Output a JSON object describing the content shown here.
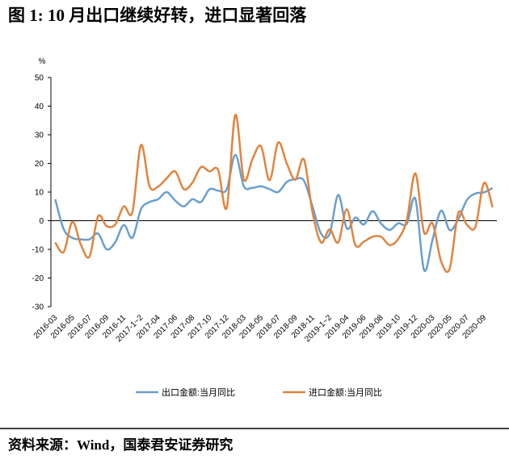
{
  "chart_data": {
    "type": "line",
    "title": "图 1: 10 月出口继续好转，进口显著回落",
    "y_unit": "%",
    "categories": [
      "2016-03",
      null,
      "2016-05",
      null,
      "2016-07",
      null,
      "2016-09",
      null,
      "2016-11",
      null,
      "2017-1~2",
      null,
      "2017-04",
      null,
      "2017-06",
      null,
      "2017-08",
      null,
      "2017-10",
      null,
      "2017-12",
      null,
      "2018-03",
      null,
      "2018-05",
      null,
      "2018-07",
      null,
      "2018-09",
      null,
      "2018-11",
      null,
      "2019-1~2",
      null,
      "2019-04",
      null,
      "2019-06",
      null,
      "2019-08",
      null,
      "2019-10",
      null,
      "2019-12",
      null,
      "2020-03",
      null,
      "2020-05",
      null,
      "2020-07",
      null,
      "2020-09",
      null
    ],
    "series": [
      {
        "name": "出口金额:当月同比",
        "color": "#6a9fce",
        "values": [
          7.5,
          -3,
          -6,
          -6.5,
          -6.5,
          -4.5,
          -10,
          -7.5,
          -1.5,
          -6,
          4,
          6.5,
          7.5,
          10,
          7,
          5,
          7.5,
          6.5,
          11,
          10.5,
          11,
          23,
          12,
          11.5,
          12,
          11,
          10,
          13.5,
          14.5,
          14,
          5,
          -4.5,
          -4.6,
          9,
          -2.7,
          1.1,
          -1.3,
          3.3,
          -1,
          -3.2,
          -0.9,
          -1.1,
          7.6,
          -17.2,
          -6.6,
          3.5,
          -3.3,
          0.5,
          7.2,
          9.5,
          9.9,
          11.4
        ]
      },
      {
        "name": "进口金额:当月同比",
        "color": "#e0843f",
        "values": [
          -7.6,
          -10.9,
          -0.4,
          -8.4,
          -12.5,
          1.5,
          -1.9,
          -1.4,
          5,
          3,
          26.4,
          12,
          11.9,
          14.8,
          17.2,
          11,
          13.3,
          18.7,
          17.2,
          17.7,
          4.5,
          36.9,
          14.4,
          21.5,
          26,
          14.1,
          27.3,
          20,
          14.3,
          21.4,
          3,
          -7.6,
          -3,
          -7.6,
          4,
          -8.5,
          -7.3,
          -5.6,
          -5.6,
          -8.5,
          -6.4,
          0.3,
          16.5,
          -4,
          -0.9,
          -14.2,
          -16.7,
          2.7,
          -1.4,
          -2.1,
          13.2,
          4.7
        ]
      }
    ],
    "ylim": [
      -30,
      50
    ],
    "yticks": [
      -30,
      -20,
      -10,
      0,
      10,
      20,
      30,
      40,
      50
    ],
    "smooth": true,
    "legend": "bottom"
  },
  "source": "资料来源：Wind，国泰君安证券研究"
}
